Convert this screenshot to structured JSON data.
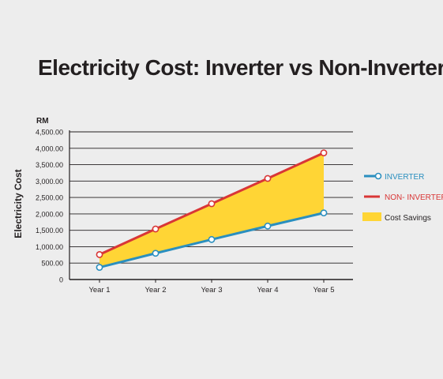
{
  "chart_data": {
    "type": "line",
    "title": "Electricity Cost: Inverter vs Non-Inverter",
    "unit_label": "RM",
    "ylabel": "Electricity Cost",
    "xlabel": "",
    "categories": [
      "Year 1",
      "Year 2",
      "Year 3",
      "Year 4",
      "Year 5"
    ],
    "y_ticks": [
      "0",
      "500.00",
      "1,000.00",
      "1,500.00",
      "2,000.00",
      "2,500.00",
      "3,000.00",
      "3,500.00",
      "4,000.00",
      "4,500.00"
    ],
    "ylim": [
      0,
      4500
    ],
    "grid": true,
    "legend_position": "right",
    "series": [
      {
        "name": "INVERTER",
        "values": [
          370,
          800,
          1220,
          1630,
          2030
        ],
        "color": "#2a8fbf"
      },
      {
        "name": "NON- INVERTER",
        "values": [
          760,
          1540,
          2310,
          3080,
          3860
        ],
        "color": "#d93636"
      }
    ],
    "fill_between": {
      "name": "Cost Savings",
      "color": "#ffd535"
    }
  },
  "colors": {
    "background": "#ededed",
    "grid": "#231f20",
    "text": "#231f20",
    "inverter_legend_text": "#2a8fbf",
    "non_inverter_legend_text": "#d93636"
  }
}
